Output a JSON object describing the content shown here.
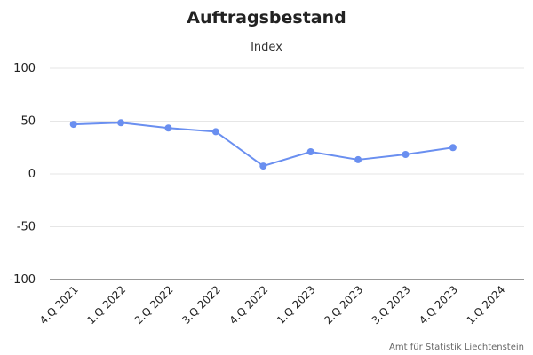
{
  "chart_data": {
    "type": "line",
    "title": "Auftragsbestand",
    "subtitle": "Index",
    "xlabel": "",
    "ylabel": "",
    "categories": [
      "4.Q 2021",
      "1.Q 2022",
      "2.Q 2022",
      "3.Q 2022",
      "4.Q 2022",
      "1.Q 2023",
      "2.Q 2023",
      "3.Q 2023",
      "4.Q 2023",
      "1.Q 2024"
    ],
    "series": [
      {
        "values": [
          47,
          48.5,
          43.5,
          40,
          7.5,
          21,
          13.5,
          18.5,
          25,
          null
        ],
        "color": "#6a8ff0"
      }
    ],
    "ylim": [
      -100,
      100
    ],
    "yticks": [
      "100",
      "50",
      "0",
      "-50",
      "-100"
    ],
    "grid": true,
    "legend": "none"
  },
  "credit": "Amt für Statistik Liechtenstein"
}
